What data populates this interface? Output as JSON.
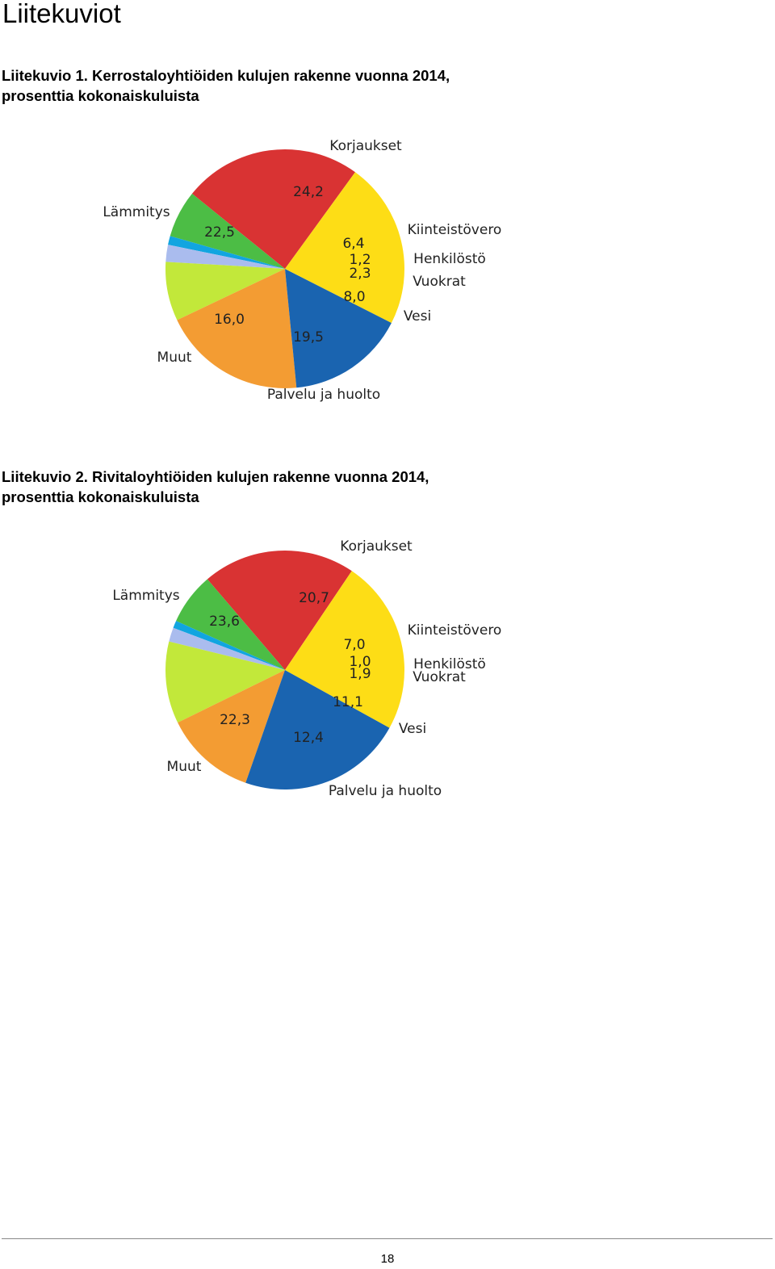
{
  "page": {
    "heading": "Liitekuviot",
    "page_number": "18"
  },
  "figures": [
    {
      "caption_line1": "Liitekuvio 1. Kerrostaloyhtiöiden kulujen rakenne vuonna 2014,",
      "caption_line2": "prosenttia kokonaiskuluista"
    },
    {
      "caption_line1": "Liitekuvio 2. Rivitaloyhtiöiden kulujen rakenne vuonna 2014,",
      "caption_line2": "prosenttia kokonaiskuluista"
    }
  ],
  "colors": {
    "Korjaukset": "#d93333",
    "Kiinteistövero": "#4cbd45",
    "Henkilöstö": "#11a5e0",
    "Vuokrat": "#aabcee",
    "Vesi": "#c2e83a",
    "Palvelu ja huolto": "#f39c33",
    "Muut": "#1a64b0",
    "Lämmitys": "#fddd16"
  },
  "chart_data": [
    {
      "type": "pie",
      "categories": [
        "Korjaukset",
        "Kiinteistövero",
        "Henkilöstö",
        "Vuokrat",
        "Vesi",
        "Palvelu ja huolto",
        "Muut",
        "Lämmitys"
      ],
      "values": [
        24.2,
        6.4,
        1.2,
        2.3,
        8.0,
        19.5,
        16.0,
        22.5
      ],
      "data_labels": [
        "24,2",
        "6,4",
        "1,2",
        "2,3",
        "8,0",
        "19,5",
        "16,0",
        "22,5"
      ]
    },
    {
      "type": "pie",
      "categories": [
        "Korjaukset",
        "Kiinteistövero",
        "Henkilöstö",
        "Vuokrat",
        "Vesi",
        "Palvelu ja huolto",
        "Muut",
        "Lämmitys"
      ],
      "values": [
        20.7,
        7.0,
        1.0,
        1.9,
        11.1,
        12.4,
        22.3,
        23.6
      ],
      "data_labels": [
        "20,7",
        "7,0",
        "1,0",
        "1,9",
        "11,1",
        "12,4",
        "22,3",
        "23,6"
      ]
    }
  ]
}
